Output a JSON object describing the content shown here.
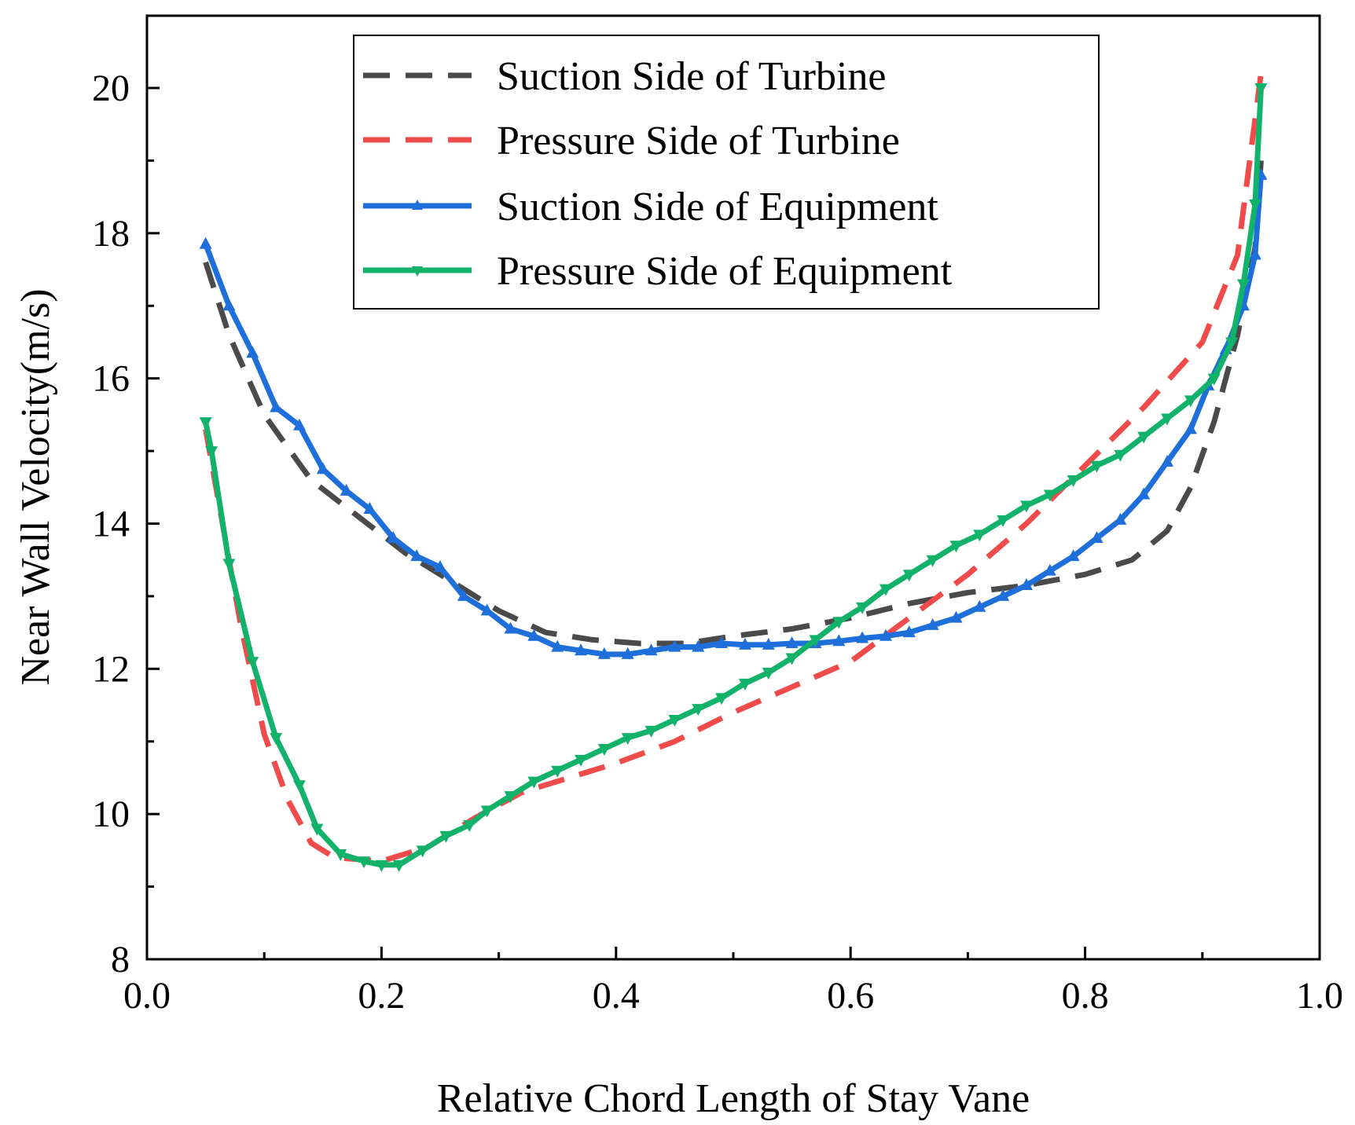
{
  "chart_data": {
    "type": "line",
    "xlabel": "Relative Chord Length of Stay Vane",
    "ylabel": "Near Wall Velocity(m/s)",
    "xlim": [
      0.0,
      1.0
    ],
    "ylim": [
      8,
      21
    ],
    "xticks": [
      0.0,
      0.2,
      0.4,
      0.6,
      0.8,
      1.0
    ],
    "xtick_labels": [
      "0.0",
      "0.2",
      "0.4",
      "0.6",
      "0.8",
      "1.0"
    ],
    "yticks": [
      8,
      10,
      12,
      14,
      16,
      18,
      20
    ],
    "ytick_labels": [
      "8",
      "10",
      "12",
      "14",
      "16",
      "18",
      "20"
    ],
    "legend_position": "top-center",
    "series": [
      {
        "name": "Suction Side of Turbine",
        "color": "#4a4a4a",
        "style": "dashed",
        "marker": "none",
        "points": [
          [
            0.05,
            17.6
          ],
          [
            0.07,
            16.6
          ],
          [
            0.1,
            15.5
          ],
          [
            0.14,
            14.6
          ],
          [
            0.18,
            14.1
          ],
          [
            0.22,
            13.6
          ],
          [
            0.26,
            13.2
          ],
          [
            0.3,
            12.8
          ],
          [
            0.34,
            12.5
          ],
          [
            0.38,
            12.4
          ],
          [
            0.42,
            12.35
          ],
          [
            0.46,
            12.35
          ],
          [
            0.5,
            12.45
          ],
          [
            0.55,
            12.55
          ],
          [
            0.6,
            12.7
          ],
          [
            0.65,
            12.9
          ],
          [
            0.7,
            13.05
          ],
          [
            0.75,
            13.15
          ],
          [
            0.8,
            13.3
          ],
          [
            0.84,
            13.5
          ],
          [
            0.87,
            13.9
          ],
          [
            0.89,
            14.5
          ],
          [
            0.91,
            15.4
          ],
          [
            0.93,
            16.6
          ],
          [
            0.945,
            17.8
          ],
          [
            0.95,
            19.0
          ]
        ]
      },
      {
        "name": "Pressure Side of Turbine",
        "color": "#f04b4b",
        "style": "dashed",
        "marker": "none",
        "points": [
          [
            0.05,
            15.3
          ],
          [
            0.06,
            14.4
          ],
          [
            0.08,
            12.6
          ],
          [
            0.1,
            11.1
          ],
          [
            0.12,
            10.2
          ],
          [
            0.14,
            9.6
          ],
          [
            0.16,
            9.4
          ],
          [
            0.2,
            9.35
          ],
          [
            0.24,
            9.55
          ],
          [
            0.28,
            9.95
          ],
          [
            0.32,
            10.3
          ],
          [
            0.36,
            10.5
          ],
          [
            0.4,
            10.7
          ],
          [
            0.45,
            11.0
          ],
          [
            0.5,
            11.4
          ],
          [
            0.55,
            11.75
          ],
          [
            0.6,
            12.1
          ],
          [
            0.65,
            12.7
          ],
          [
            0.7,
            13.3
          ],
          [
            0.75,
            14.0
          ],
          [
            0.8,
            14.8
          ],
          [
            0.85,
            15.6
          ],
          [
            0.9,
            16.5
          ],
          [
            0.93,
            17.7
          ],
          [
            0.95,
            20.2
          ]
        ]
      },
      {
        "name": "Suction Side of Equipment",
        "color": "#1f6fdb",
        "style": "solid",
        "marker": "triangle-up",
        "points": [
          [
            0.05,
            17.85
          ],
          [
            0.07,
            17.0
          ],
          [
            0.09,
            16.35
          ],
          [
            0.11,
            15.6
          ],
          [
            0.13,
            15.35
          ],
          [
            0.15,
            14.75
          ],
          [
            0.17,
            14.45
          ],
          [
            0.19,
            14.2
          ],
          [
            0.21,
            13.8
          ],
          [
            0.23,
            13.55
          ],
          [
            0.25,
            13.4
          ],
          [
            0.27,
            13.0
          ],
          [
            0.29,
            12.8
          ],
          [
            0.31,
            12.55
          ],
          [
            0.33,
            12.45
          ],
          [
            0.35,
            12.3
          ],
          [
            0.37,
            12.25
          ],
          [
            0.39,
            12.2
          ],
          [
            0.41,
            12.2
          ],
          [
            0.43,
            12.25
          ],
          [
            0.45,
            12.3
          ],
          [
            0.47,
            12.3
          ],
          [
            0.49,
            12.35
          ],
          [
            0.51,
            12.33
          ],
          [
            0.53,
            12.33
          ],
          [
            0.55,
            12.35
          ],
          [
            0.57,
            12.35
          ],
          [
            0.59,
            12.38
          ],
          [
            0.61,
            12.42
          ],
          [
            0.63,
            12.45
          ],
          [
            0.65,
            12.5
          ],
          [
            0.67,
            12.6
          ],
          [
            0.69,
            12.7
          ],
          [
            0.71,
            12.85
          ],
          [
            0.73,
            13.0
          ],
          [
            0.75,
            13.15
          ],
          [
            0.77,
            13.35
          ],
          [
            0.79,
            13.55
          ],
          [
            0.81,
            13.8
          ],
          [
            0.83,
            14.05
          ],
          [
            0.85,
            14.4
          ],
          [
            0.87,
            14.85
          ],
          [
            0.89,
            15.3
          ],
          [
            0.905,
            15.9
          ],
          [
            0.92,
            16.4
          ],
          [
            0.935,
            17.0
          ],
          [
            0.945,
            17.7
          ],
          [
            0.95,
            18.8
          ]
        ]
      },
      {
        "name": "Pressure Side of Equipment",
        "color": "#12b26b",
        "style": "solid",
        "marker": "triangle-down",
        "points": [
          [
            0.05,
            15.4
          ],
          [
            0.055,
            15.0
          ],
          [
            0.07,
            13.45
          ],
          [
            0.09,
            12.1
          ],
          [
            0.11,
            11.05
          ],
          [
            0.13,
            10.4
          ],
          [
            0.145,
            9.8
          ],
          [
            0.165,
            9.45
          ],
          [
            0.185,
            9.35
          ],
          [
            0.2,
            9.3
          ],
          [
            0.215,
            9.3
          ],
          [
            0.235,
            9.5
          ],
          [
            0.255,
            9.7
          ],
          [
            0.275,
            9.85
          ],
          [
            0.29,
            10.05
          ],
          [
            0.31,
            10.25
          ],
          [
            0.33,
            10.45
          ],
          [
            0.35,
            10.6
          ],
          [
            0.37,
            10.75
          ],
          [
            0.39,
            10.9
          ],
          [
            0.41,
            11.05
          ],
          [
            0.43,
            11.15
          ],
          [
            0.45,
            11.3
          ],
          [
            0.47,
            11.45
          ],
          [
            0.49,
            11.6
          ],
          [
            0.51,
            11.8
          ],
          [
            0.53,
            11.95
          ],
          [
            0.55,
            12.15
          ],
          [
            0.57,
            12.4
          ],
          [
            0.59,
            12.65
          ],
          [
            0.61,
            12.85
          ],
          [
            0.63,
            13.1
          ],
          [
            0.65,
            13.3
          ],
          [
            0.67,
            13.5
          ],
          [
            0.69,
            13.7
          ],
          [
            0.71,
            13.85
          ],
          [
            0.73,
            14.05
          ],
          [
            0.75,
            14.25
          ],
          [
            0.77,
            14.4
          ],
          [
            0.79,
            14.6
          ],
          [
            0.81,
            14.8
          ],
          [
            0.83,
            14.95
          ],
          [
            0.85,
            15.2
          ],
          [
            0.87,
            15.45
          ],
          [
            0.89,
            15.7
          ],
          [
            0.91,
            16.0
          ],
          [
            0.925,
            16.5
          ],
          [
            0.935,
            17.3
          ],
          [
            0.945,
            18.4
          ],
          [
            0.95,
            20.0
          ]
        ]
      }
    ]
  }
}
